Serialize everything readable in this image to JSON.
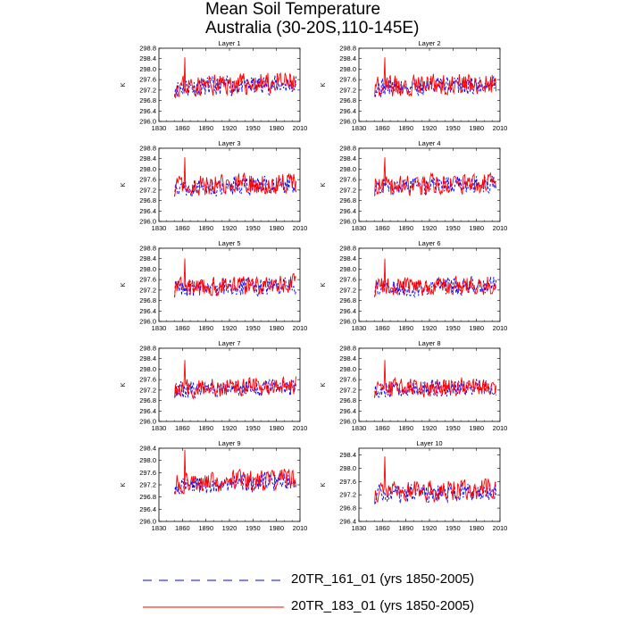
{
  "title_line1": "Mean Soil Temperature",
  "title_line2": "Australia (30-20S,110-145E)",
  "legend": [
    {
      "label": "20TR_161_01 (yrs 1850-2005)",
      "color": "#0000ff",
      "style": "dashed"
    },
    {
      "label": "20TR_183_01 (yrs 1850-2005)",
      "color": "#ff0000",
      "style": "solid"
    }
  ],
  "chart_data": [
    {
      "type": "line",
      "title": "Layer 1",
      "ylabel": "K",
      "xlim": [
        1830,
        2010
      ],
      "ylim": [
        296.0,
        298.8
      ],
      "xticks": [
        "1830",
        "1860",
        "1890",
        "1920",
        "1950",
        "1980",
        "2010"
      ],
      "yticks": [
        "296.0",
        "296.4",
        "296.8",
        "297.2",
        "297.6",
        "298.0",
        "298.4",
        "298.8"
      ],
      "x": {
        "start": 1850,
        "end": 2005,
        "step": 1
      },
      "series": [
        {
          "name": "20TR_161_01",
          "base": 297.3,
          "amp": 0.35,
          "seed": 11
        },
        {
          "name": "20TR_183_01",
          "base": 297.35,
          "amp": 0.4,
          "seed": 23
        }
      ]
    },
    {
      "type": "line",
      "title": "Layer 2",
      "ylabel": "K",
      "xlim": [
        1830,
        2010
      ],
      "ylim": [
        296.0,
        298.8
      ],
      "xticks": [
        "1830",
        "1860",
        "1890",
        "1920",
        "1950",
        "1980",
        "2010"
      ],
      "yticks": [
        "296.0",
        "296.4",
        "296.8",
        "297.2",
        "297.6",
        "298.0",
        "298.4",
        "298.8"
      ],
      "x": {
        "start": 1850,
        "end": 2005,
        "step": 1
      },
      "series": [
        {
          "name": "20TR_161_01",
          "base": 297.3,
          "amp": 0.35,
          "seed": 31
        },
        {
          "name": "20TR_183_01",
          "base": 297.35,
          "amp": 0.4,
          "seed": 43
        }
      ]
    },
    {
      "type": "line",
      "title": "Layer 3",
      "ylabel": "K",
      "xlim": [
        1830,
        2010
      ],
      "ylim": [
        296.0,
        298.8
      ],
      "xticks": [
        "1830",
        "1860",
        "1890",
        "1920",
        "1950",
        "1980",
        "2010"
      ],
      "yticks": [
        "296.0",
        "296.4",
        "296.8",
        "297.2",
        "297.6",
        "298.0",
        "298.4",
        "298.8"
      ],
      "x": {
        "start": 1850,
        "end": 2005,
        "step": 1
      },
      "series": [
        {
          "name": "20TR_161_01",
          "base": 297.3,
          "amp": 0.35,
          "seed": 51
        },
        {
          "name": "20TR_183_01",
          "base": 297.35,
          "amp": 0.38,
          "seed": 63
        }
      ]
    },
    {
      "type": "line",
      "title": "Layer 4",
      "ylabel": "K",
      "xlim": [
        1830,
        2010
      ],
      "ylim": [
        296.0,
        298.8
      ],
      "xticks": [
        "1830",
        "1860",
        "1890",
        "1920",
        "1950",
        "1980",
        "2010"
      ],
      "yticks": [
        "296.0",
        "296.4",
        "296.8",
        "297.2",
        "297.6",
        "298.0",
        "298.4",
        "298.8"
      ],
      "x": {
        "start": 1850,
        "end": 2005,
        "step": 1
      },
      "series": [
        {
          "name": "20TR_161_01",
          "base": 297.3,
          "amp": 0.33,
          "seed": 71
        },
        {
          "name": "20TR_183_01",
          "base": 297.35,
          "amp": 0.38,
          "seed": 83
        }
      ]
    },
    {
      "type": "line",
      "title": "Layer 5",
      "ylabel": "K",
      "xlim": [
        1830,
        2010
      ],
      "ylim": [
        296.0,
        298.8
      ],
      "xticks": [
        "1830",
        "1860",
        "1890",
        "1920",
        "1950",
        "1980",
        "2010"
      ],
      "yticks": [
        "296.0",
        "296.4",
        "296.8",
        "297.2",
        "297.6",
        "298.0",
        "298.4",
        "298.8"
      ],
      "x": {
        "start": 1850,
        "end": 2005,
        "step": 1
      },
      "series": [
        {
          "name": "20TR_161_01",
          "base": 297.25,
          "amp": 0.33,
          "seed": 91
        },
        {
          "name": "20TR_183_01",
          "base": 297.3,
          "amp": 0.36,
          "seed": 103
        }
      ]
    },
    {
      "type": "line",
      "title": "Layer 6",
      "ylabel": "K",
      "xlim": [
        1830,
        2010
      ],
      "ylim": [
        296.0,
        298.8
      ],
      "xticks": [
        "1830",
        "1860",
        "1890",
        "1920",
        "1950",
        "1980",
        "2010"
      ],
      "yticks": [
        "296.0",
        "296.4",
        "296.8",
        "297.2",
        "297.6",
        "298.0",
        "298.4",
        "298.8"
      ],
      "x": {
        "start": 1850,
        "end": 2005,
        "step": 1
      },
      "series": [
        {
          "name": "20TR_161_01",
          "base": 297.25,
          "amp": 0.32,
          "seed": 111
        },
        {
          "name": "20TR_183_01",
          "base": 297.3,
          "amp": 0.36,
          "seed": 123
        }
      ]
    },
    {
      "type": "line",
      "title": "Layer 7",
      "ylabel": "K",
      "xlim": [
        1830,
        2010
      ],
      "ylim": [
        296.0,
        298.8
      ],
      "xticks": [
        "1830",
        "1860",
        "1890",
        "1920",
        "1950",
        "1980",
        "2010"
      ],
      "yticks": [
        "296.0",
        "296.4",
        "296.8",
        "297.2",
        "297.6",
        "298.0",
        "298.4",
        "298.8"
      ],
      "x": {
        "start": 1850,
        "end": 2005,
        "step": 1
      },
      "series": [
        {
          "name": "20TR_161_01",
          "base": 297.2,
          "amp": 0.3,
          "seed": 131
        },
        {
          "name": "20TR_183_01",
          "base": 297.25,
          "amp": 0.34,
          "seed": 143
        }
      ]
    },
    {
      "type": "line",
      "title": "Layer 8",
      "ylabel": "K",
      "xlim": [
        1830,
        2010
      ],
      "ylim": [
        296.0,
        298.8
      ],
      "xticks": [
        "1830",
        "1860",
        "1890",
        "1920",
        "1950",
        "1980",
        "2010"
      ],
      "yticks": [
        "296.0",
        "296.4",
        "296.8",
        "297.2",
        "297.6",
        "298.0",
        "298.4",
        "298.8"
      ],
      "x": {
        "start": 1850,
        "end": 2005,
        "step": 1
      },
      "series": [
        {
          "name": "20TR_161_01",
          "base": 297.2,
          "amp": 0.3,
          "seed": 151
        },
        {
          "name": "20TR_183_01",
          "base": 297.25,
          "amp": 0.34,
          "seed": 163
        }
      ]
    },
    {
      "type": "line",
      "title": "Layer 9",
      "ylabel": "K",
      "xlim": [
        1830,
        2010
      ],
      "ylim": [
        296.0,
        298.4
      ],
      "xticks": [
        "1830",
        "1860",
        "1890",
        "1920",
        "1950",
        "1980",
        "2010"
      ],
      "yticks": [
        "296.0",
        "296.4",
        "296.8",
        "297.2",
        "297.6",
        "298.0",
        "298.4"
      ],
      "x": {
        "start": 1850,
        "end": 2005,
        "step": 1
      },
      "series": [
        {
          "name": "20TR_161_01",
          "base": 297.2,
          "amp": 0.3,
          "seed": 171
        },
        {
          "name": "20TR_183_01",
          "base": 297.25,
          "amp": 0.34,
          "seed": 183
        }
      ]
    },
    {
      "type": "line",
      "title": "Layer 10",
      "ylabel": "K",
      "xlim": [
        1830,
        2010
      ],
      "ylim": [
        296.4,
        298.6
      ],
      "xticks": [
        "1830",
        "1860",
        "1890",
        "1920",
        "1950",
        "1980",
        "2010"
      ],
      "yticks": [
        "296.4",
        "296.8",
        "297.2",
        "297.6",
        "298.0",
        "298.4"
      ],
      "x": {
        "start": 1850,
        "end": 2005,
        "step": 1
      },
      "series": [
        {
          "name": "20TR_161_01",
          "base": 297.2,
          "amp": 0.28,
          "seed": 191
        },
        {
          "name": "20TR_183_01",
          "base": 297.25,
          "amp": 0.32,
          "seed": 203
        }
      ]
    }
  ]
}
